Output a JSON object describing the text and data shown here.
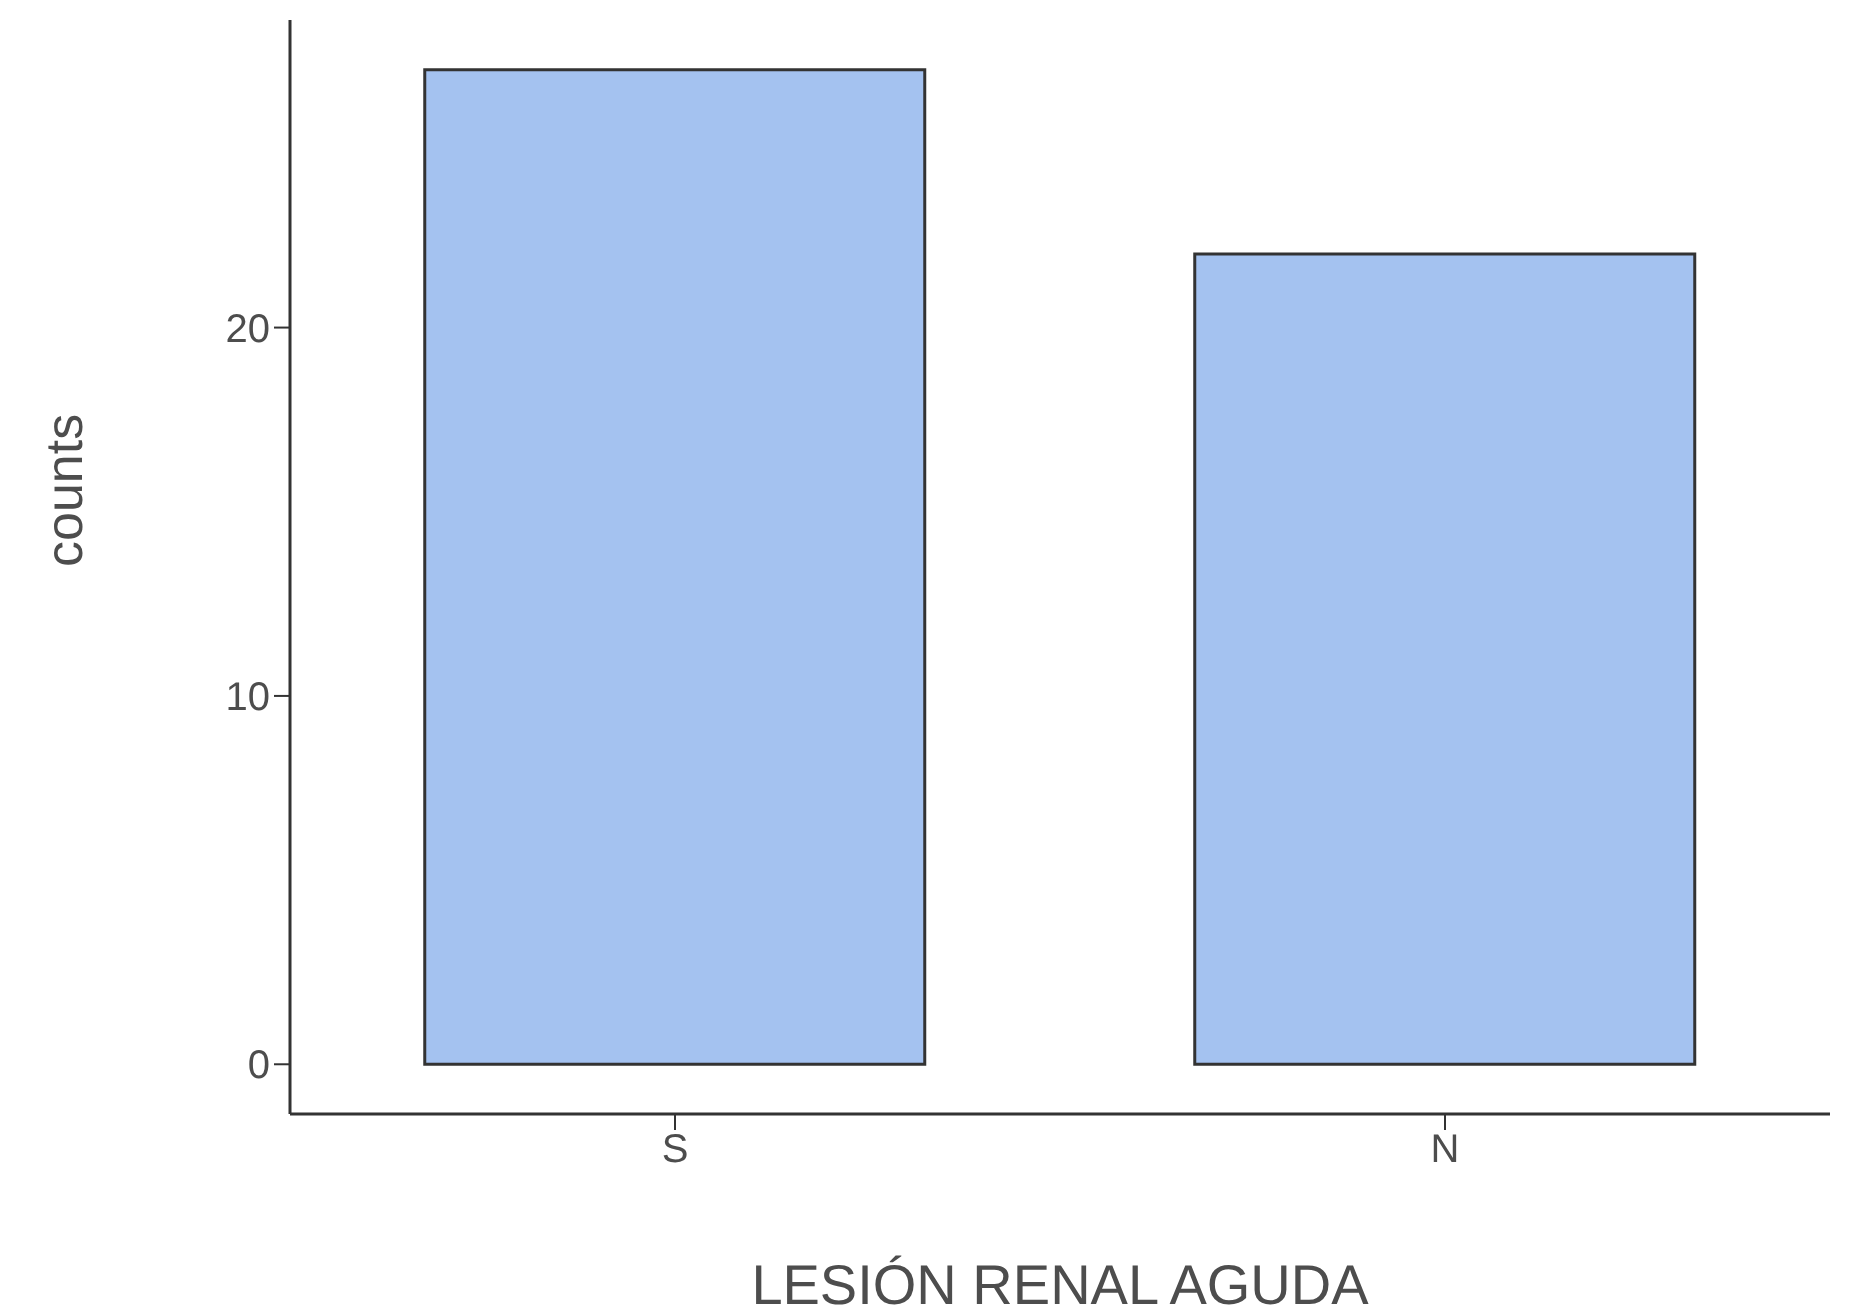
{
  "chart_data": {
    "type": "bar",
    "xlabel": "LESIÓN RENAL AGUDA",
    "ylabel": "counts",
    "categories": [
      "S",
      "N"
    ],
    "values": [
      27,
      22
    ],
    "color": "#a4c2f0",
    "ylim": [
      -1.35,
      28.35
    ],
    "yticks": [
      0,
      10,
      20
    ],
    "grid": false
  }
}
